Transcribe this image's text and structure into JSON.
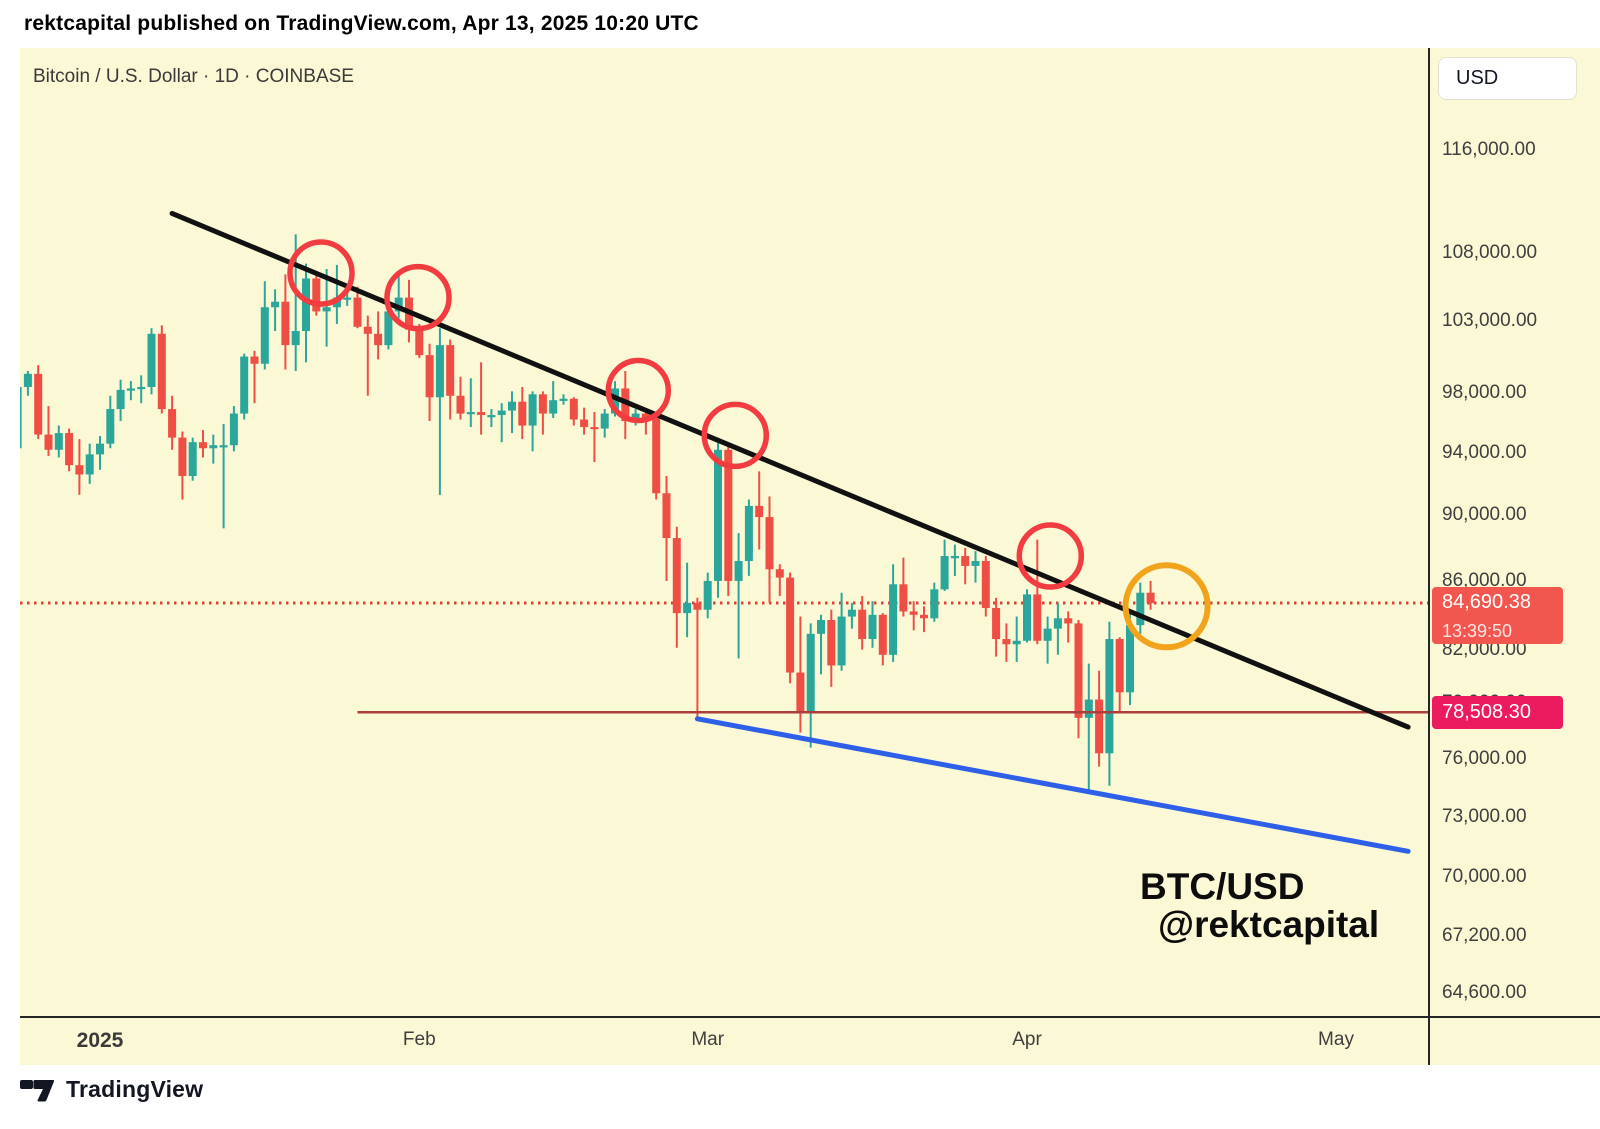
{
  "header": {
    "publish_line": "rektcapital published on TradingView.com, Apr 13, 2025 10:20 UTC"
  },
  "chart": {
    "symbol_title": "Bitcoin / U.S. Dollar · 1D · COINBASE",
    "currency_button": "USD",
    "watermark_line1": "BTC/USD",
    "watermark_line2": "@rektcapital",
    "price_badge": {
      "price": "84,690.38",
      "countdown": "13:39:50"
    },
    "level_badge": {
      "price": "78,508.30"
    }
  },
  "price_axis": {
    "tick_labels": [
      "116,000.00",
      "108,000.00",
      "103,000.00",
      "98,000.00",
      "94,000.00",
      "90,000.00",
      "86,000.00",
      "82,000.00",
      "79,000.00",
      "76,000.00",
      "73,000.00",
      "70,000.00",
      "67,200.00",
      "64,600.00"
    ]
  },
  "time_axis": {
    "ticks": [
      {
        "label": "2025",
        "date": "2025-01-01",
        "bold": true
      },
      {
        "label": "Feb",
        "date": "2025-02-01",
        "bold": false
      },
      {
        "label": "Mar",
        "date": "2025-03-01",
        "bold": false
      },
      {
        "label": "Apr",
        "date": "2025-04-01",
        "bold": false
      },
      {
        "label": "May",
        "date": "2025-05-01",
        "bold": false
      }
    ]
  },
  "footer": {
    "brand": "TradingView"
  },
  "colors": {
    "chart_bg": "#faf8d5",
    "up": "#2ba69a",
    "down": "#ef4e45",
    "trendline": "#111111",
    "support": "#2e5fe8",
    "level_line": "#ac3e3c",
    "current_price_line": "#d84339",
    "circle": "#f23c40",
    "orange_circle": "#f2a31c",
    "price_badge_bg": "#f2574f",
    "level_badge_bg": "#ec1a5e",
    "axis_text": "#3f3f3f",
    "border": "#252525"
  },
  "chart_data": {
    "type": "candlestick",
    "title": "Bitcoin / U.S. Dollar",
    "interval": "1D",
    "exchange": "COINBASE",
    "y_scale": "log",
    "ylim": [
      63500,
      119000
    ],
    "price_ticks": [
      116000,
      108000,
      103000,
      98000,
      94000,
      90000,
      86000,
      82000,
      79000,
      76000,
      73000,
      70000,
      67200,
      64600
    ],
    "last_price": 84690.38,
    "countdown": "13:39:50",
    "horizontal_level": 78508.3,
    "candles": [
      [
        "2024-12-24",
        94300,
        99000,
        93900,
        98400
      ],
      [
        "2024-12-25",
        98400,
        99500,
        97800,
        99300
      ],
      [
        "2024-12-26",
        99300,
        99900,
        94900,
        95200
      ],
      [
        "2024-12-27",
        95200,
        97100,
        93800,
        94200
      ],
      [
        "2024-12-28",
        94200,
        95800,
        93700,
        95300
      ],
      [
        "2024-12-29",
        95300,
        95600,
        92800,
        93200
      ],
      [
        "2024-12-30",
        93200,
        94900,
        91300,
        92600
      ],
      [
        "2024-12-31",
        92600,
        94600,
        92000,
        93900
      ],
      [
        "2025-01-01",
        93900,
        95100,
        92900,
        94600
      ],
      [
        "2025-01-02",
        94600,
        97800,
        94300,
        96900
      ],
      [
        "2025-01-03",
        96900,
        98900,
        96100,
        98200
      ],
      [
        "2025-01-04",
        98200,
        98800,
        97500,
        98300
      ],
      [
        "2025-01-05",
        98300,
        99200,
        97300,
        98400
      ],
      [
        "2025-01-06",
        98400,
        102500,
        97900,
        102100
      ],
      [
        "2025-01-07",
        102100,
        102700,
        96600,
        96900
      ],
      [
        "2025-01-08",
        96900,
        97800,
        94200,
        95000
      ],
      [
        "2025-01-09",
        95000,
        95400,
        91000,
        92500
      ],
      [
        "2025-01-10",
        92500,
        95000,
        92200,
        94700
      ],
      [
        "2025-01-11",
        94700,
        95500,
        93700,
        94300
      ],
      [
        "2025-01-12",
        94300,
        95200,
        93300,
        94500
      ],
      [
        "2025-01-13",
        94500,
        95900,
        89200,
        94500
      ],
      [
        "2025-01-14",
        94500,
        97100,
        94100,
        96600
      ],
      [
        "2025-01-15",
        96600,
        100700,
        96200,
        100500
      ],
      [
        "2025-01-16",
        100500,
        100900,
        97300,
        100000
      ],
      [
        "2025-01-17",
        100000,
        105900,
        99600,
        104000
      ],
      [
        "2025-01-18",
        104000,
        105300,
        102300,
        104400
      ],
      [
        "2025-01-19",
        104400,
        106400,
        99600,
        101300
      ],
      [
        "2025-01-20",
        101300,
        109400,
        99500,
        102300
      ],
      [
        "2025-01-21",
        102300,
        107200,
        100100,
        106100
      ],
      [
        "2025-01-22",
        106100,
        106300,
        103400,
        103700
      ],
      [
        "2025-01-23",
        103700,
        106800,
        101200,
        104000
      ],
      [
        "2025-01-24",
        104000,
        107100,
        102800,
        104700
      ],
      [
        "2025-01-25",
        104700,
        105200,
        104100,
        104700
      ],
      [
        "2025-01-26",
        104700,
        105500,
        102500,
        102600
      ],
      [
        "2025-01-27",
        102600,
        103400,
        97800,
        102100
      ],
      [
        "2025-01-28",
        102100,
        103700,
        100300,
        101300
      ],
      [
        "2025-01-29",
        101300,
        104000,
        101000,
        103700
      ],
      [
        "2025-01-30",
        103700,
        106500,
        103200,
        104700
      ],
      [
        "2025-01-31",
        104700,
        106000,
        101500,
        102400
      ],
      [
        "2025-02-01",
        102400,
        102800,
        100400,
        100600
      ],
      [
        "2025-02-02",
        100600,
        101400,
        96100,
        97700
      ],
      [
        "2025-02-03",
        97700,
        102500,
        91300,
        101300
      ],
      [
        "2025-02-04",
        101300,
        101700,
        96200,
        97800
      ],
      [
        "2025-02-05",
        97800,
        99100,
        96200,
        96600
      ],
      [
        "2025-02-06",
        96600,
        99000,
        95700,
        96700
      ],
      [
        "2025-02-07",
        96700,
        100100,
        95200,
        96500
      ],
      [
        "2025-02-08",
        96500,
        96900,
        95700,
        96500
      ],
      [
        "2025-02-09",
        96500,
        97300,
        94700,
        96800
      ],
      [
        "2025-02-10",
        96800,
        98100,
        95300,
        97400
      ],
      [
        "2025-02-11",
        97400,
        98400,
        94900,
        95800
      ],
      [
        "2025-02-12",
        95800,
        98100,
        94100,
        97900
      ],
      [
        "2025-02-13",
        97900,
        98100,
        95200,
        96600
      ],
      [
        "2025-02-14",
        96600,
        98800,
        96300,
        97500
      ],
      [
        "2025-02-15",
        97500,
        97900,
        97200,
        97600
      ],
      [
        "2025-02-16",
        97600,
        97700,
        95800,
        96200
      ],
      [
        "2025-02-17",
        96200,
        97000,
        95200,
        95700
      ],
      [
        "2025-02-18",
        95700,
        96700,
        93400,
        95600
      ],
      [
        "2025-02-19",
        95600,
        96900,
        95000,
        96600
      ],
      [
        "2025-02-20",
        96600,
        98800,
        96400,
        98300
      ],
      [
        "2025-02-21",
        98300,
        99500,
        94900,
        96100
      ],
      [
        "2025-02-22",
        96100,
        96900,
        95800,
        96600
      ],
      [
        "2025-02-23",
        96600,
        96700,
        95200,
        96300
      ],
      [
        "2025-02-24",
        96300,
        96500,
        91000,
        91400
      ],
      [
        "2025-02-25",
        91400,
        92500,
        86000,
        88600
      ],
      [
        "2025-02-26",
        88600,
        89300,
        82100,
        84100
      ],
      [
        "2025-02-27",
        84100,
        87100,
        82700,
        84700
      ],
      [
        "2025-02-28",
        84700,
        85000,
        78200,
        84300
      ],
      [
        "2025-03-01",
        84300,
        86500,
        83800,
        86000
      ],
      [
        "2025-03-02",
        86000,
        95000,
        85000,
        94200
      ],
      [
        "2025-03-03",
        94200,
        94400,
        85100,
        86000
      ],
      [
        "2025-03-04",
        86000,
        88900,
        81500,
        87200
      ],
      [
        "2025-03-05",
        87200,
        91000,
        86300,
        90600
      ],
      [
        "2025-03-06",
        90600,
        92800,
        87900,
        89900
      ],
      [
        "2025-03-07",
        89900,
        91200,
        84700,
        86700
      ],
      [
        "2025-03-08",
        86700,
        87000,
        85100,
        86200
      ],
      [
        "2025-03-09",
        86200,
        86500,
        80100,
        80700
      ],
      [
        "2025-03-10",
        80700,
        83900,
        77400,
        78500
      ],
      [
        "2025-03-11",
        78500,
        83500,
        76600,
        82900
      ],
      [
        "2025-03-12",
        82900,
        84000,
        80600,
        83700
      ],
      [
        "2025-03-13",
        83700,
        84300,
        79900,
        81100
      ],
      [
        "2025-03-14",
        81100,
        85300,
        80800,
        83900
      ],
      [
        "2025-03-15",
        83900,
        84700,
        83200,
        84300
      ],
      [
        "2025-03-16",
        84300,
        85100,
        82000,
        82600
      ],
      [
        "2025-03-17",
        82600,
        84800,
        82100,
        84000
      ],
      [
        "2025-03-18",
        84000,
        84100,
        81100,
        81700
      ],
      [
        "2025-03-19",
        81700,
        87000,
        81300,
        85800
      ],
      [
        "2025-03-20",
        85800,
        87400,
        83900,
        84200
      ],
      [
        "2025-03-21",
        84200,
        84800,
        83100,
        84000
      ],
      [
        "2025-03-22",
        84000,
        84500,
        83000,
        83800
      ],
      [
        "2025-03-23",
        83800,
        85900,
        83600,
        85500
      ],
      [
        "2025-03-24",
        85500,
        88500,
        85400,
        87500
      ],
      [
        "2025-03-25",
        87500,
        88200,
        86300,
        87500
      ],
      [
        "2025-03-26",
        87500,
        88000,
        85800,
        86900
      ],
      [
        "2025-03-27",
        86900,
        87800,
        85900,
        87200
      ],
      [
        "2025-03-28",
        87200,
        87500,
        83900,
        84400
      ],
      [
        "2025-03-29",
        84400,
        85000,
        81600,
        82600
      ],
      [
        "2025-03-30",
        82600,
        83500,
        81300,
        82300
      ],
      [
        "2025-03-31",
        82300,
        83900,
        81300,
        82500
      ],
      [
        "2025-04-01",
        82500,
        85500,
        82400,
        85200
      ],
      [
        "2025-04-02",
        85200,
        88500,
        82300,
        82500
      ],
      [
        "2025-04-03",
        82500,
        83900,
        81200,
        83200
      ],
      [
        "2025-04-04",
        83200,
        84700,
        81700,
        83800
      ],
      [
        "2025-04-05",
        83800,
        84200,
        82400,
        83500
      ],
      [
        "2025-04-06",
        83500,
        83700,
        77100,
        78200
      ],
      [
        "2025-04-07",
        78200,
        81200,
        74400,
        79200
      ],
      [
        "2025-04-08",
        79200,
        80800,
        75600,
        76300
      ],
      [
        "2025-04-09",
        76300,
        83600,
        74600,
        82600
      ],
      [
        "2025-04-10",
        82600,
        82700,
        78500,
        79600
      ],
      [
        "2025-04-11",
        79600,
        84200,
        78900,
        83400
      ],
      [
        "2025-04-12",
        83400,
        85900,
        82900,
        85300
      ],
      [
        "2025-04-13",
        85300,
        86000,
        84300,
        84690.38
      ]
    ],
    "annotations": {
      "downtrend_line": {
        "from": {
          "date": "2025-01-08",
          "price": 111000
        },
        "to": {
          "date": "2025-05-08",
          "price": 77700
        },
        "width": 5
      },
      "support_trendline": {
        "from": {
          "date": "2025-02-28",
          "price": 78150
        },
        "to": {
          "date": "2025-05-08",
          "price": 71280
        },
        "width": 5
      },
      "level_line": {
        "price": 78508.3,
        "from_date": "2025-01-26",
        "width": 2.5
      },
      "current_price_line": {
        "price": 84690.38,
        "style": "dotted"
      },
      "circles": [
        {
          "date": "2025-01-21",
          "price": 106500,
          "dx": 15,
          "r": 31,
          "kind": "red"
        },
        {
          "date": "2025-01-31",
          "price": 104700,
          "dx": 9,
          "r": 31,
          "kind": "red"
        },
        {
          "date": "2025-02-21",
          "price": 98160,
          "dx": 13,
          "r": 30,
          "kind": "red"
        },
        {
          "date": "2025-03-03",
          "price": 95150,
          "dx": 7,
          "r": 31,
          "kind": "red"
        },
        {
          "date": "2025-04-02",
          "price": 87500,
          "dx": 13,
          "r": 31,
          "kind": "red"
        },
        {
          "date": "2025-04-13",
          "price": 84500,
          "dx": 16,
          "r": 41,
          "kind": "orange"
        }
      ]
    }
  }
}
